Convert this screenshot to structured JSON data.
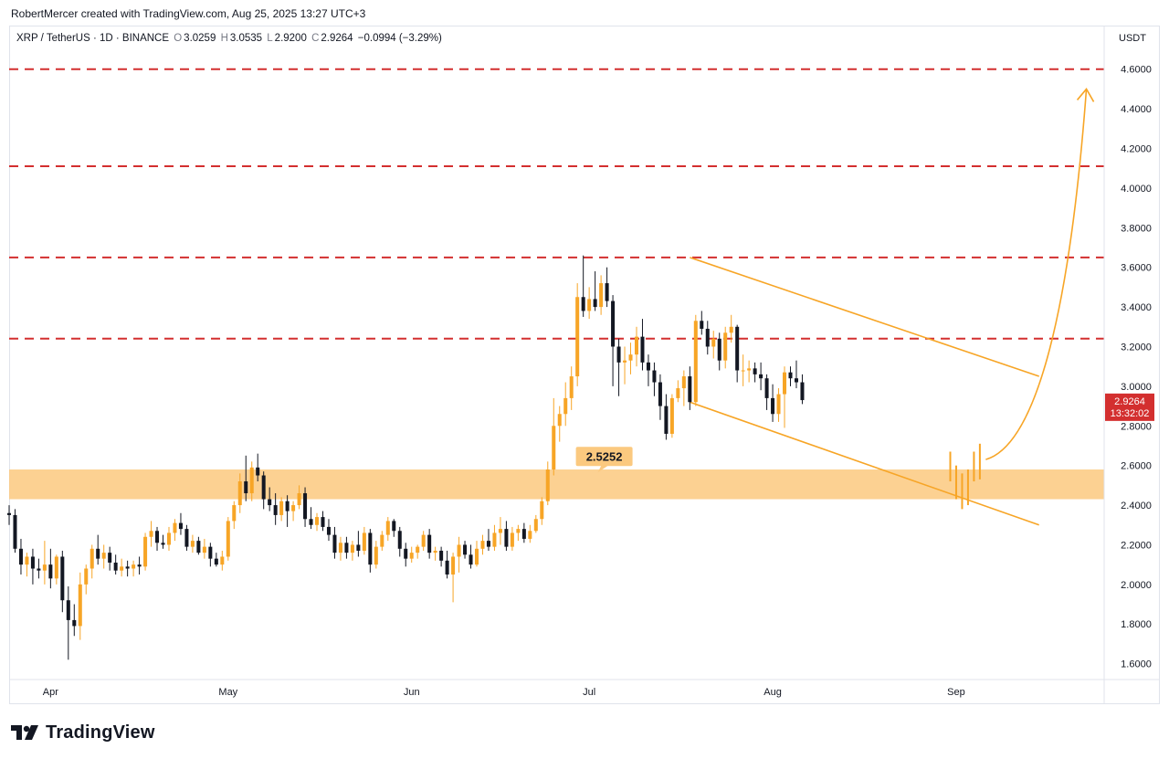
{
  "header": {
    "credit": "RobertMercer created with TradingView.com, Aug 25, 2025 13:27 UTC+3"
  },
  "legend": {
    "symbol": "XRP / TetherUS · 1D · BINANCE",
    "o_label": "O",
    "o_value": "3.0259",
    "h_label": "H",
    "h_value": "3.0535",
    "l_label": "L",
    "l_value": "2.9200",
    "c_label": "C",
    "c_value": "2.9264",
    "change": "−0.0994 (−3.29%)"
  },
  "price_axis": {
    "currency": "USDT"
  },
  "last_price": {
    "price": "2.9264",
    "countdown": "13:32:02",
    "color": "#d32f2f"
  },
  "brand": {
    "name": "TradingView",
    "logo": "tradingview-logo-icon"
  },
  "chart_data": {
    "type": "candlestick",
    "x_range": [
      "2025-03-25",
      "2025-09-26"
    ],
    "ylim": [
      1.52,
      4.82
    ],
    "yticks": [
      "1.6000",
      "1.8000",
      "2.0000",
      "2.2000",
      "2.4000",
      "2.6000",
      "2.8000",
      "3.0000",
      "3.2000",
      "3.4000",
      "3.6000",
      "3.8000",
      "4.0000",
      "4.2000",
      "4.4000",
      "4.6000"
    ],
    "xticks": [
      {
        "date": "2025-04-01",
        "label": "Apr"
      },
      {
        "date": "2025-05-01",
        "label": "May"
      },
      {
        "date": "2025-06-01",
        "label": "Jun"
      },
      {
        "date": "2025-07-01",
        "label": "Jul"
      },
      {
        "date": "2025-08-01",
        "label": "Aug"
      },
      {
        "date": "2025-09-01",
        "label": "Sep"
      }
    ],
    "candle_colors": {
      "up": "#f7a526",
      "down": "#131722"
    },
    "start_date": "2025-03-25",
    "candles_ohlc": [
      [
        2.36,
        2.4,
        2.3,
        2.35
      ],
      [
        2.35,
        2.38,
        2.16,
        2.18
      ],
      [
        2.18,
        2.23,
        2.05,
        2.1
      ],
      [
        2.1,
        2.16,
        2.04,
        2.14
      ],
      [
        2.14,
        2.18,
        2.0,
        2.08
      ],
      [
        2.08,
        2.13,
        2.03,
        2.07
      ],
      [
        2.07,
        2.22,
        2.0,
        2.1
      ],
      [
        2.1,
        2.18,
        1.98,
        2.03
      ],
      [
        2.03,
        2.15,
        2.0,
        2.14
      ],
      [
        2.14,
        2.17,
        1.86,
        1.92
      ],
      [
        1.92,
        1.99,
        1.62,
        1.82
      ],
      [
        1.82,
        1.9,
        1.74,
        1.79
      ],
      [
        1.79,
        2.06,
        1.72,
        2.0
      ],
      [
        2.0,
        2.1,
        1.95,
        2.08
      ],
      [
        2.08,
        2.2,
        2.03,
        2.18
      ],
      [
        2.18,
        2.25,
        2.1,
        2.13
      ],
      [
        2.13,
        2.2,
        2.08,
        2.16
      ],
      [
        2.16,
        2.19,
        2.07,
        2.11
      ],
      [
        2.11,
        2.15,
        2.05,
        2.07
      ],
      [
        2.07,
        2.13,
        2.04,
        2.09
      ],
      [
        2.09,
        2.12,
        2.04,
        2.08
      ],
      [
        2.08,
        2.12,
        2.04,
        2.1
      ],
      [
        2.1,
        2.14,
        2.05,
        2.09
      ],
      [
        2.09,
        2.26,
        2.07,
        2.24
      ],
      [
        2.24,
        2.32,
        2.19,
        2.27
      ],
      [
        2.27,
        2.29,
        2.17,
        2.21
      ],
      [
        2.21,
        2.25,
        2.18,
        2.2
      ],
      [
        2.2,
        2.29,
        2.17,
        2.26
      ],
      [
        2.26,
        2.33,
        2.22,
        2.31
      ],
      [
        2.31,
        2.36,
        2.25,
        2.28
      ],
      [
        2.28,
        2.3,
        2.17,
        2.19
      ],
      [
        2.19,
        2.25,
        2.16,
        2.22
      ],
      [
        2.22,
        2.24,
        2.15,
        2.16
      ],
      [
        2.16,
        2.23,
        2.13,
        2.19
      ],
      [
        2.19,
        2.21,
        2.09,
        2.13
      ],
      [
        2.13,
        2.16,
        2.09,
        2.1
      ],
      [
        2.1,
        2.17,
        2.07,
        2.14
      ],
      [
        2.14,
        2.34,
        2.12,
        2.32
      ],
      [
        2.32,
        2.42,
        2.28,
        2.4
      ],
      [
        2.4,
        2.56,
        2.36,
        2.52
      ],
      [
        2.52,
        2.65,
        2.42,
        2.46
      ],
      [
        2.46,
        2.62,
        2.42,
        2.59
      ],
      [
        2.59,
        2.66,
        2.52,
        2.55
      ],
      [
        2.55,
        2.57,
        2.38,
        2.43
      ],
      [
        2.43,
        2.49,
        2.37,
        2.4
      ],
      [
        2.4,
        2.46,
        2.3,
        2.35
      ],
      [
        2.35,
        2.44,
        2.32,
        2.42
      ],
      [
        2.42,
        2.45,
        2.29,
        2.37
      ],
      [
        2.37,
        2.42,
        2.32,
        2.4
      ],
      [
        2.4,
        2.5,
        2.38,
        2.46
      ],
      [
        2.46,
        2.49,
        2.29,
        2.33
      ],
      [
        2.33,
        2.39,
        2.28,
        2.3
      ],
      [
        2.3,
        2.36,
        2.27,
        2.34
      ],
      [
        2.34,
        2.37,
        2.27,
        2.29
      ],
      [
        2.29,
        2.33,
        2.22,
        2.25
      ],
      [
        2.25,
        2.29,
        2.13,
        2.16
      ],
      [
        2.16,
        2.24,
        2.12,
        2.21
      ],
      [
        2.21,
        2.24,
        2.13,
        2.16
      ],
      [
        2.16,
        2.22,
        2.12,
        2.2
      ],
      [
        2.2,
        2.27,
        2.14,
        2.17
      ],
      [
        2.17,
        2.29,
        2.15,
        2.26
      ],
      [
        2.26,
        2.28,
        2.06,
        2.1
      ],
      [
        2.1,
        2.22,
        2.08,
        2.19
      ],
      [
        2.19,
        2.27,
        2.17,
        2.25
      ],
      [
        2.25,
        2.34,
        2.22,
        2.32
      ],
      [
        2.32,
        2.33,
        2.24,
        2.27
      ],
      [
        2.27,
        2.29,
        2.14,
        2.18
      ],
      [
        2.18,
        2.21,
        2.09,
        2.13
      ],
      [
        2.13,
        2.19,
        2.11,
        2.16
      ],
      [
        2.16,
        2.2,
        2.13,
        2.19
      ],
      [
        2.19,
        2.27,
        2.17,
        2.25
      ],
      [
        2.25,
        2.28,
        2.13,
        2.16
      ],
      [
        2.16,
        2.19,
        2.12,
        2.17
      ],
      [
        2.17,
        2.19,
        2.09,
        2.12
      ],
      [
        2.12,
        2.17,
        2.03,
        2.05
      ],
      [
        2.05,
        2.16,
        1.91,
        2.14
      ],
      [
        2.14,
        2.24,
        2.06,
        2.2
      ],
      [
        2.2,
        2.22,
        2.13,
        2.15
      ],
      [
        2.15,
        2.2,
        2.08,
        2.1
      ],
      [
        2.1,
        2.22,
        2.09,
        2.18
      ],
      [
        2.18,
        2.25,
        2.15,
        2.22
      ],
      [
        2.22,
        2.28,
        2.17,
        2.19
      ],
      [
        2.19,
        2.3,
        2.17,
        2.26
      ],
      [
        2.26,
        2.34,
        2.2,
        2.28
      ],
      [
        2.28,
        2.32,
        2.17,
        2.19
      ],
      [
        2.19,
        2.29,
        2.17,
        2.26
      ],
      [
        2.26,
        2.3,
        2.22,
        2.28
      ],
      [
        2.28,
        2.31,
        2.21,
        2.23
      ],
      [
        2.23,
        2.3,
        2.21,
        2.27
      ],
      [
        2.27,
        2.35,
        2.26,
        2.33
      ],
      [
        2.33,
        2.44,
        2.3,
        2.42
      ],
      [
        2.42,
        2.62,
        2.4,
        2.58
      ],
      [
        2.58,
        2.94,
        2.55,
        2.8
      ],
      [
        2.8,
        2.9,
        2.72,
        2.86
      ],
      [
        2.86,
        3.02,
        2.8,
        2.94
      ],
      [
        2.94,
        3.1,
        2.88,
        3.05
      ],
      [
        3.05,
        3.52,
        3.0,
        3.45
      ],
      [
        3.45,
        3.66,
        3.35,
        3.38
      ],
      [
        3.38,
        3.5,
        3.34,
        3.44
      ],
      [
        3.44,
        3.58,
        3.38,
        3.4
      ],
      [
        3.4,
        3.56,
        3.36,
        3.52
      ],
      [
        3.52,
        3.6,
        3.4,
        3.43
      ],
      [
        3.43,
        3.46,
        3.0,
        3.2
      ],
      [
        3.2,
        3.24,
        2.95,
        3.12
      ],
      [
        3.12,
        3.2,
        3.01,
        3.13
      ],
      [
        3.13,
        3.22,
        3.06,
        3.16
      ],
      [
        3.16,
        3.3,
        3.1,
        3.25
      ],
      [
        3.25,
        3.34,
        3.08,
        3.12
      ],
      [
        3.12,
        3.16,
        3.0,
        3.08
      ],
      [
        3.08,
        3.12,
        2.95,
        3.02
      ],
      [
        3.02,
        3.06,
        2.83,
        2.9
      ],
      [
        2.9,
        2.96,
        2.73,
        2.76
      ],
      [
        2.76,
        2.96,
        2.74,
        2.94
      ],
      [
        2.94,
        3.03,
        2.92,
        2.99
      ],
      [
        2.99,
        3.08,
        2.9,
        3.05
      ],
      [
        3.05,
        3.1,
        2.88,
        2.92
      ],
      [
        2.92,
        3.36,
        2.9,
        3.33
      ],
      [
        3.33,
        3.38,
        3.26,
        3.29
      ],
      [
        3.29,
        3.33,
        3.16,
        3.2
      ],
      [
        3.2,
        3.28,
        3.14,
        3.24
      ],
      [
        3.24,
        3.27,
        3.08,
        3.13
      ],
      [
        3.13,
        3.3,
        3.09,
        3.27
      ],
      [
        3.27,
        3.36,
        3.22,
        3.3
      ],
      [
        3.3,
        3.31,
        3.02,
        3.08
      ],
      [
        3.08,
        3.16,
        3.0,
        3.08
      ],
      [
        3.08,
        3.13,
        3.02,
        3.09
      ],
      [
        3.09,
        3.12,
        3.02,
        3.06
      ],
      [
        3.06,
        3.12,
        2.98,
        3.04
      ],
      [
        3.04,
        3.06,
        2.88,
        2.94
      ],
      [
        2.94,
        3.01,
        2.82,
        2.86
      ],
      [
        2.86,
        2.99,
        2.82,
        2.96
      ],
      [
        2.96,
        3.1,
        2.79,
        3.07
      ],
      [
        3.07,
        3.1,
        3.0,
        3.04
      ],
      [
        3.04,
        3.13,
        2.99,
        3.02
      ],
      [
        3.02,
        3.06,
        2.91,
        2.93
      ]
    ],
    "horizontal_levels": [
      {
        "price": 4.6,
        "color": "#d32f2f",
        "style": "dashed"
      },
      {
        "price": 4.11,
        "color": "#d32f2f",
        "style": "dashed"
      },
      {
        "price": 3.65,
        "color": "#d32f2f",
        "style": "dashed"
      },
      {
        "price": 3.24,
        "color": "#d32f2f",
        "style": "dashed"
      }
    ],
    "support_zone": {
      "low": 2.43,
      "high": 2.58,
      "color": "#fbc97f"
    },
    "zone_label": {
      "text": "2.5252",
      "date": "2025-07-04",
      "price": 2.648
    },
    "channel_lines": [
      {
        "from": {
          "date": "2025-07-18",
          "price": 3.65
        },
        "to": {
          "date": "2025-09-15",
          "price": 3.05
        }
      },
      {
        "from": {
          "date": "2025-07-18",
          "price": 2.92
        },
        "to": {
          "date": "2025-09-15",
          "price": 2.3
        }
      }
    ],
    "projection_bars": [
      {
        "date": "2025-08-31",
        "low": 2.52,
        "high": 2.67
      },
      {
        "date": "2025-09-01",
        "low": 2.43,
        "high": 2.6
      },
      {
        "date": "2025-09-02",
        "low": 2.38,
        "high": 2.56
      },
      {
        "date": "2025-09-03",
        "low": 2.4,
        "high": 2.58
      },
      {
        "date": "2025-09-04",
        "low": 2.52,
        "high": 2.67
      },
      {
        "date": "2025-09-05",
        "low": 2.53,
        "high": 2.71
      }
    ],
    "projection_curve": [
      {
        "date": "2025-09-06",
        "price": 2.63
      },
      {
        "date": "2025-09-14",
        "price": 2.7
      },
      {
        "date": "2025-09-20",
        "price": 3.3
      },
      {
        "date": "2025-09-23",
        "price": 4.5
      }
    ],
    "annotation_color": "#f7a526"
  }
}
